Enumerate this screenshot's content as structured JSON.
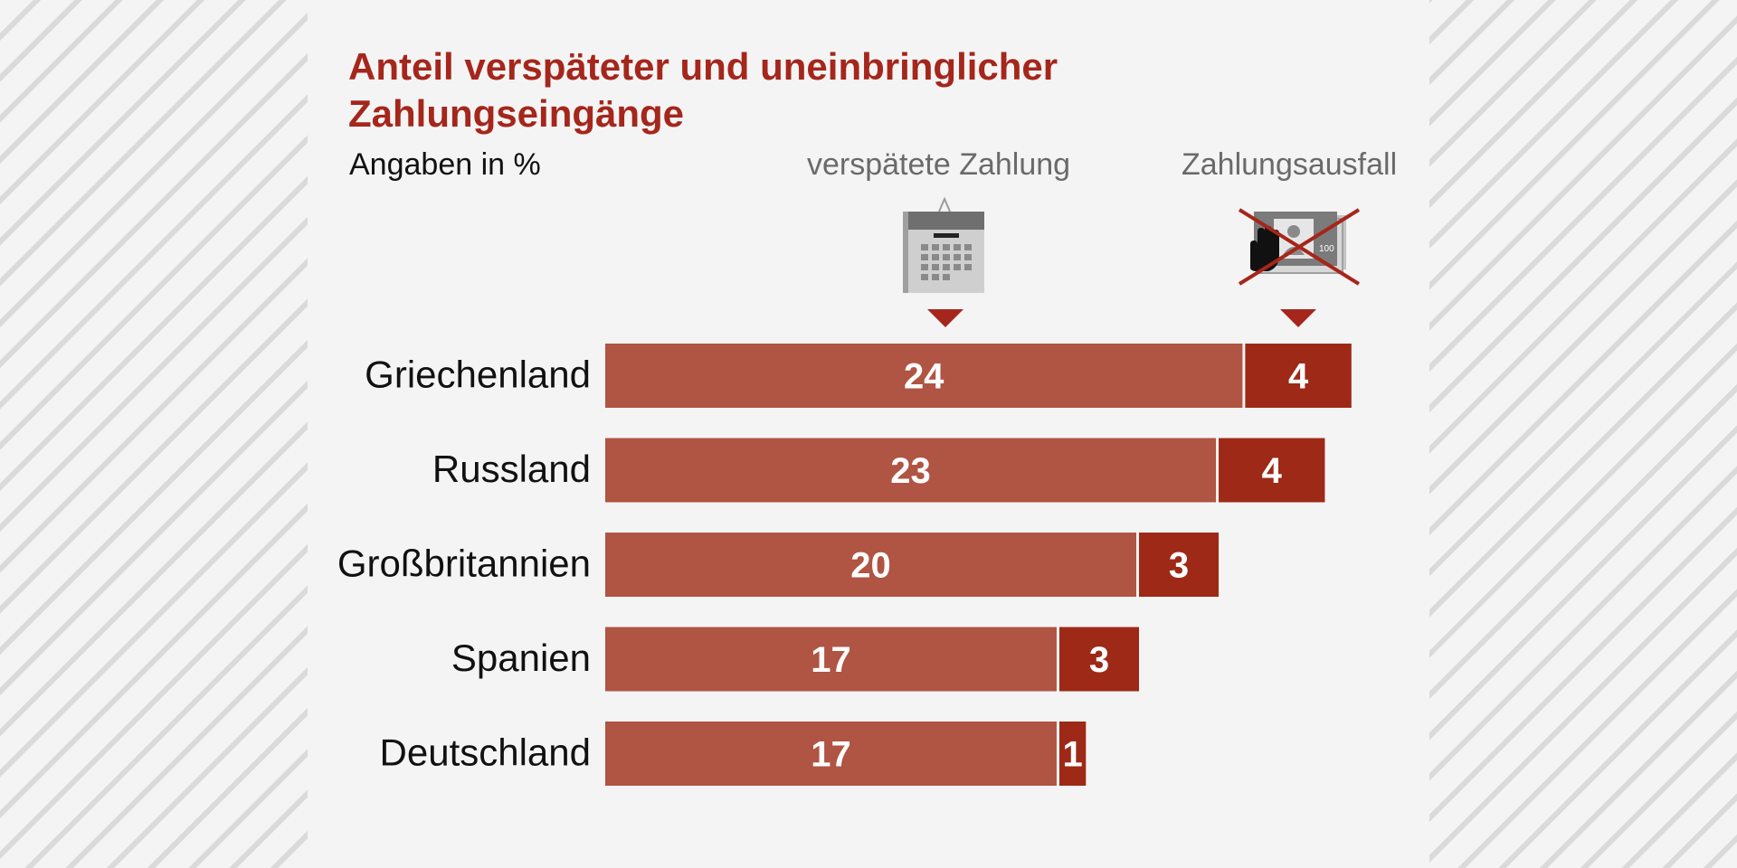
{
  "chart_data": {
    "type": "bar",
    "orientation": "horizontal",
    "stacked": true,
    "title": "Anteil verspäteter und uneinbringlicher Zahlungseingänge",
    "title_lines": [
      "Anteil verspäteter und uneinbringlicher",
      "Zahlungseingänge"
    ],
    "subtitle": "Angaben in %",
    "categories": [
      "Griechenland",
      "Russland",
      "Großbritannien",
      "Spanien",
      "Deutschland"
    ],
    "series": [
      {
        "name": "verspätete Zahlung",
        "values": [
          24,
          23,
          20,
          17,
          17
        ],
        "color": "#b05443",
        "icon": "calendar-icon"
      },
      {
        "name": "Zahlungsausfall",
        "values": [
          4,
          4,
          3,
          3,
          1
        ],
        "color": "#9e2916",
        "icon": "crossed-out-payment-icon"
      }
    ],
    "data_labels": true,
    "label_color": "#ffffff",
    "grid": false,
    "axes_visible": false
  }
}
